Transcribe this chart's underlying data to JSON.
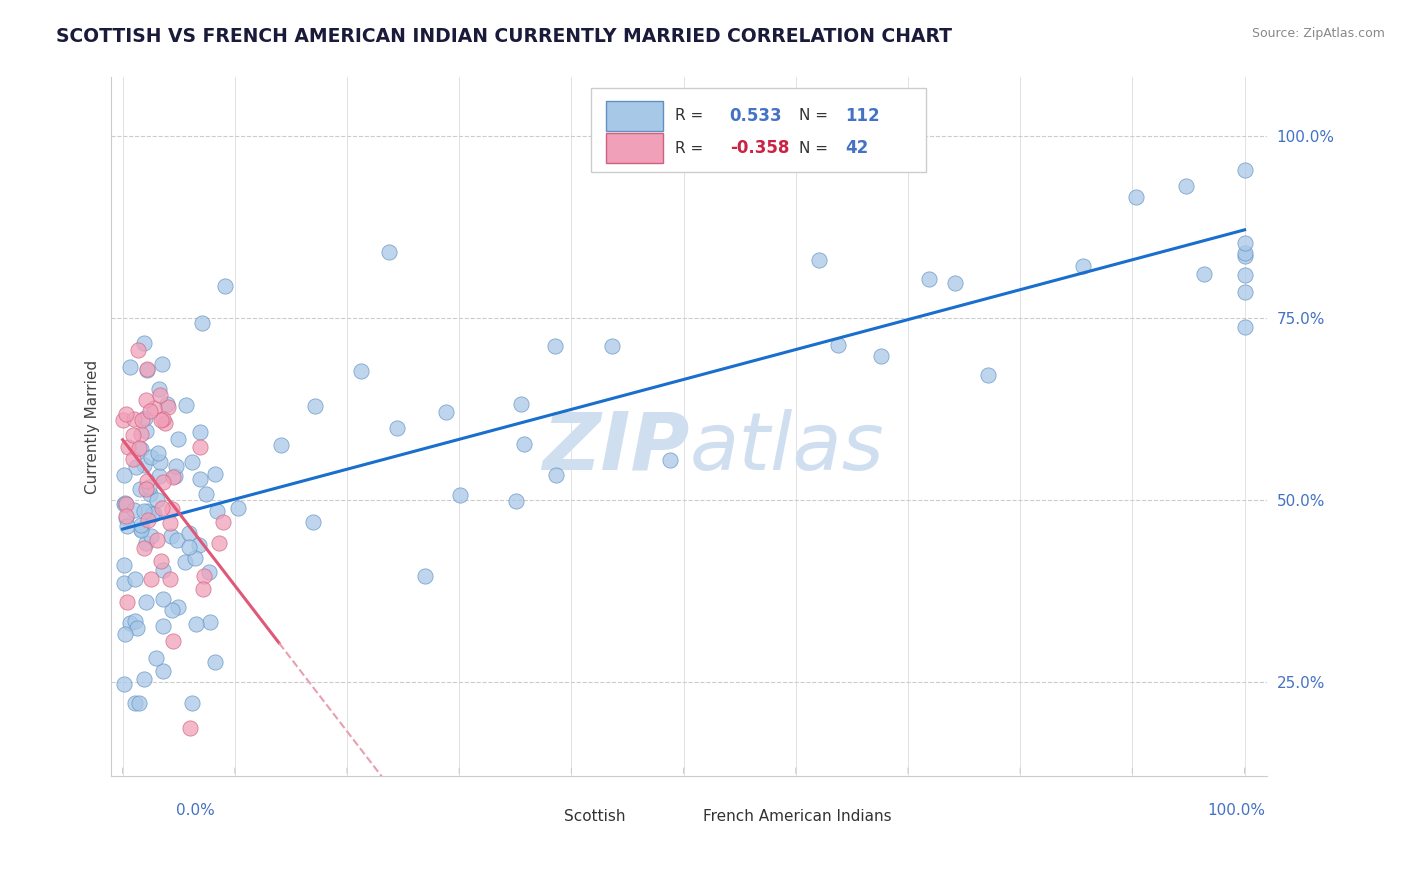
{
  "title": "SCOTTISH VS FRENCH AMERICAN INDIAN CURRENTLY MARRIED CORRELATION CHART",
  "source": "Source: ZipAtlas.com",
  "ylabel": "Currently Married",
  "legend_labels": [
    "Scottish",
    "French American Indians"
  ],
  "r_scottish": 0.533,
  "n_scottish": 112,
  "r_french": -0.358,
  "n_french": 42,
  "scottish_dot_color": "#a8c8e8",
  "scottish_dot_edge": "#6090c0",
  "french_dot_color": "#f0a0b8",
  "french_dot_edge": "#d06080",
  "scottish_line_color": "#1a6fcc",
  "french_line_color": "#e05878",
  "french_dash_color": "#e8a0b0",
  "watermark_color": "#d0dff0",
  "grid_color": "#cccccc",
  "right_tick_color": "#4472c4",
  "title_color": "#1a1a3a",
  "source_color": "#888888",
  "bg_color": "#ffffff"
}
